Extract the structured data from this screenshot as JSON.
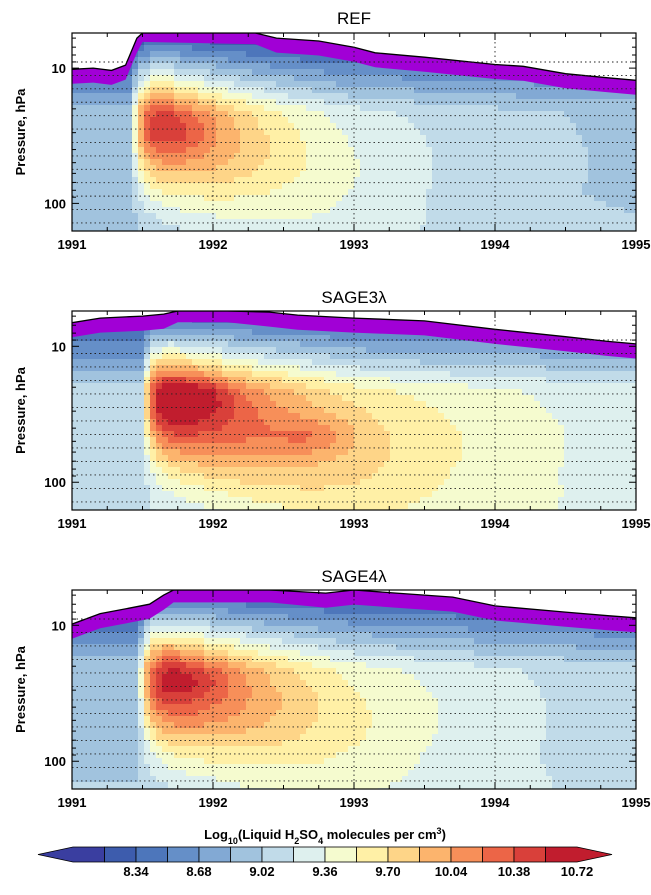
{
  "chart_data": {
    "type": "heatmap",
    "x_ticks": [
      "1991",
      "1992",
      "1993",
      "1994",
      "1995"
    ],
    "y_ticks": [
      "10",
      "100"
    ],
    "ylabel": "Pressure, hPa",
    "x_range": [
      1991,
      1995
    ],
    "y_range_hpa": [
      160,
      5.5
    ],
    "y_scale": "log",
    "grid": "dotted",
    "colorbar": {
      "title_parts": [
        "Log",
        "10",
        "(Liquid H",
        "2",
        "SO",
        "4",
        " molecules per cm",
        "3",
        ")"
      ],
      "labels": [
        "8.34",
        "8.68",
        "9.02",
        "9.36",
        "9.70",
        "10.04",
        "10.38",
        "10.72"
      ],
      "colors": [
        "#3a3ea0",
        "#3d5cad",
        "#4d76bb",
        "#658fc8",
        "#82a9d4",
        "#a1c3de",
        "#c1dbe9",
        "#def0ee",
        "#f5fbcf",
        "#fff0a6",
        "#fed588",
        "#fcb46d",
        "#f78f59",
        "#ec6547",
        "#d9403a",
        "#c11d2e"
      ],
      "top_band_color": "#a100d6",
      "extend": "both"
    },
    "panels": [
      {
        "title": "REF",
        "top_boundary_hpa": [
          [
            1991.0,
            10.2
          ],
          [
            1991.15,
            10.0
          ],
          [
            1991.28,
            10.4
          ],
          [
            1991.38,
            9.5
          ],
          [
            1991.46,
            6.0
          ],
          [
            1991.5,
            5.0
          ],
          [
            1992.3,
            5.2
          ],
          [
            1992.45,
            6.0
          ],
          [
            1992.75,
            6.3
          ],
          [
            1993.0,
            7.0
          ],
          [
            1993.15,
            7.7
          ],
          [
            1993.5,
            8.3
          ],
          [
            1994.0,
            9.4
          ],
          [
            1994.2,
            9.7
          ],
          [
            1994.5,
            11.0
          ],
          [
            1994.8,
            11.8
          ],
          [
            1995.0,
            12.3
          ]
        ],
        "centers": [
          {
            "x": 1991.72,
            "logp": 1.45,
            "value": 10.3
          }
        ],
        "plume": {
          "x0": 1991.42,
          "t_rise": 0.08,
          "decay": 1.1,
          "peak_shift": 0.35,
          "width": 0.48,
          "bg_level": 8.75
        }
      },
      {
        "title": "SAGE3λ",
        "top_boundary_hpa": [
          [
            1991.0,
            6.7
          ],
          [
            1991.2,
            6.2
          ],
          [
            1991.5,
            6.0
          ],
          [
            1991.65,
            5.8
          ],
          [
            1991.75,
            5.2
          ],
          [
            1992.1,
            5.2
          ],
          [
            1992.4,
            5.6
          ],
          [
            1992.6,
            5.9
          ],
          [
            1993.0,
            6.2
          ],
          [
            1993.5,
            6.5
          ],
          [
            1994.0,
            7.5
          ],
          [
            1994.5,
            8.5
          ],
          [
            1994.8,
            9.2
          ],
          [
            1995.0,
            9.6
          ]
        ],
        "centers": [
          {
            "x": 1991.85,
            "logp": 1.37,
            "value": 10.5
          },
          {
            "x": 1992.7,
            "logp": 1.66,
            "value": 10.4
          }
        ],
        "plume": {
          "x0": 1991.5,
          "t_rise": 0.07,
          "decay": 1.6,
          "peak_shift": 0.35,
          "width": 0.45,
          "bg_level": 8.9
        }
      },
      {
        "title": "SAGE4λ",
        "top_boundary_hpa": [
          [
            1991.0,
            9.8
          ],
          [
            1991.2,
            8.2
          ],
          [
            1991.4,
            7.5
          ],
          [
            1991.55,
            7.0
          ],
          [
            1991.65,
            6.0
          ],
          [
            1991.72,
            5.3
          ],
          [
            1992.4,
            5.3
          ],
          [
            1992.8,
            5.8
          ],
          [
            1993.0,
            5.5
          ],
          [
            1993.3,
            5.8
          ],
          [
            1993.7,
            6.2
          ],
          [
            1994.0,
            7.2
          ],
          [
            1994.5,
            8.0
          ],
          [
            1994.8,
            8.5
          ],
          [
            1995.0,
            8.8
          ]
        ],
        "centers": [
          {
            "x": 1991.85,
            "logp": 1.4,
            "value": 10.35
          }
        ],
        "plume": {
          "x0": 1991.47,
          "t_rise": 0.08,
          "decay": 1.35,
          "peak_shift": 0.3,
          "width": 0.48,
          "bg_level": 8.8
        }
      }
    ]
  }
}
